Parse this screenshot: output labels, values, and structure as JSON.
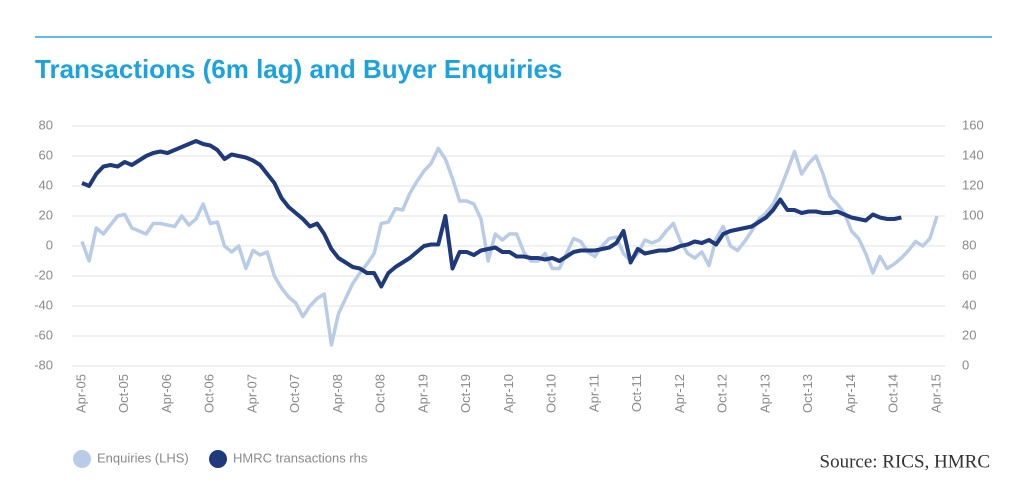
{
  "chart_data": {
    "type": "line",
    "title": "Transactions (6m lag) and Buyer Enquiries",
    "source": "Source: RICS, HMRC",
    "categories": [
      "Apr-05",
      null,
      null,
      null,
      null,
      null,
      "Oct-05",
      null,
      null,
      null,
      null,
      null,
      "Apr-06",
      null,
      null,
      null,
      null,
      null,
      "Oct-06",
      null,
      null,
      null,
      null,
      null,
      "Apr-07",
      null,
      null,
      null,
      null,
      null,
      "Oct-07",
      null,
      null,
      null,
      null,
      null,
      "Apr-08",
      null,
      null,
      null,
      null,
      null,
      "Oct-08",
      null,
      null,
      null,
      null,
      null,
      "Apr-19",
      null,
      null,
      null,
      null,
      null,
      "Oct-19",
      null,
      null,
      null,
      null,
      null,
      "Apr-10",
      null,
      null,
      null,
      null,
      null,
      "Oct-10",
      null,
      null,
      null,
      null,
      null,
      "Apr-11",
      null,
      null,
      null,
      null,
      null,
      "Oct-11",
      null,
      null,
      null,
      null,
      null,
      "Apr-12",
      null,
      null,
      null,
      null,
      null,
      "Oct-12",
      null,
      null,
      null,
      null,
      null,
      "Apr-13",
      null,
      null,
      null,
      null,
      null,
      "Oct-13",
      null,
      null,
      null,
      null,
      null,
      "Apr-14",
      null,
      null,
      null,
      null,
      null,
      "Oct-14",
      null,
      null,
      null,
      null,
      null,
      "Apr-15"
    ],
    "series": [
      {
        "name": "Enquiries (LHS)",
        "color": "#b9cce7",
        "values": [
          3,
          -10,
          12,
          8,
          14,
          20,
          21,
          12,
          10,
          8,
          15,
          15,
          14,
          13,
          20,
          14,
          18,
          28,
          15,
          16,
          0,
          -4,
          0,
          -15,
          -3,
          -6,
          -4,
          -20,
          -28,
          -34,
          -38,
          -47,
          -40,
          -35,
          -32,
          -66,
          -45,
          -35,
          -25,
          -18,
          -12,
          -5,
          15,
          16,
          25,
          24,
          35,
          43,
          50,
          55,
          65,
          58,
          45,
          30,
          30,
          28,
          18,
          -10,
          8,
          4,
          8,
          8,
          -4,
          -10,
          -10,
          -5,
          -15,
          -15,
          -5,
          5,
          3,
          -4,
          -7,
          0,
          5,
          6,
          -5,
          -10,
          -5,
          4,
          2,
          4,
          10,
          15,
          3,
          -5,
          -8,
          -4,
          -13,
          5,
          13,
          0,
          -3,
          3,
          10,
          18,
          22,
          28,
          38,
          50,
          63,
          48,
          55,
          60,
          48,
          33,
          28,
          22,
          10,
          5,
          -5,
          -18,
          -7,
          -15,
          -12,
          -8,
          -3,
          3,
          0,
          5,
          20
        ]
      },
      {
        "name": "HMRC transactions rhs",
        "color": "#1f3a7c",
        "axis": "y2",
        "values": [
          122,
          120,
          128,
          133,
          134,
          133,
          136,
          134,
          137,
          140,
          142,
          143,
          142,
          144,
          146,
          148,
          150,
          148,
          147,
          144,
          138,
          141,
          140,
          139,
          137,
          134,
          128,
          122,
          112,
          106,
          102,
          98,
          93,
          95,
          88,
          78,
          72,
          69,
          66,
          65,
          62,
          62,
          53,
          62,
          66,
          69,
          72,
          76,
          80,
          81,
          81,
          100,
          65,
          76,
          76,
          74,
          77,
          78,
          79,
          76,
          76,
          73,
          73,
          72,
          72,
          71,
          72,
          70,
          73,
          76,
          77,
          77,
          77,
          78,
          79,
          82,
          90,
          69,
          78,
          75,
          76,
          77,
          77,
          78,
          80,
          81,
          83,
          82,
          84,
          81,
          88,
          90,
          91,
          92,
          93,
          96,
          99,
          104,
          111,
          104,
          104,
          102,
          103,
          103,
          102,
          102,
          103,
          101,
          99,
          98,
          97,
          101,
          99,
          98,
          98,
          99,
          null,
          null,
          null,
          null,
          null
        ]
      }
    ],
    "ylim": [
      -80,
      80
    ],
    "yticks": [
      -80,
      -60,
      -40,
      -20,
      0,
      20,
      40,
      60,
      80
    ],
    "y2lim": [
      0,
      160
    ],
    "y2ticks": [
      0,
      20,
      40,
      60,
      80,
      100,
      120,
      140,
      160
    ],
    "grid": true
  }
}
